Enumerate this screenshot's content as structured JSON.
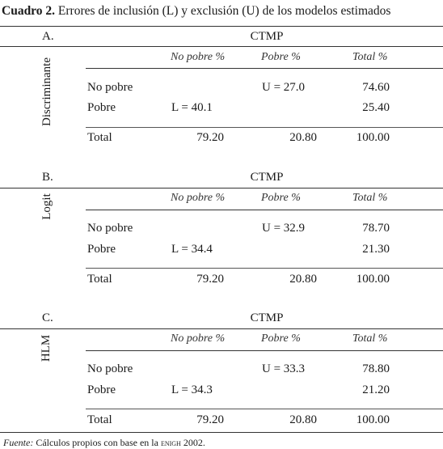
{
  "title": {
    "label": "Cuadro 2.",
    "text": "Errores de inclusión (L) y exclusión (U) de los modelos estimados"
  },
  "panels": [
    {
      "letter": "A.",
      "header": "CTMP",
      "model": "Discriminante",
      "columns": [
        "No pobre %",
        "Pobre %",
        "Total %"
      ],
      "rows": [
        {
          "label": "No pobre",
          "no_pobre": "",
          "pobre": "U = 27.0",
          "total": "74.60"
        },
        {
          "label": "Pobre",
          "no_pobre": "L = 40.1",
          "pobre": "",
          "total": "25.40"
        }
      ],
      "totals": {
        "label": "Total",
        "no_pobre": "79.20",
        "pobre": "20.80",
        "total": "100.00"
      }
    },
    {
      "letter": "B.",
      "header": "CTMP",
      "model": "Logit",
      "columns": [
        "No pobre %",
        "Pobre %",
        "Total %"
      ],
      "rows": [
        {
          "label": "No pobre",
          "no_pobre": "",
          "pobre": "U = 32.9",
          "total": "78.70"
        },
        {
          "label": "Pobre",
          "no_pobre": "L = 34.4",
          "pobre": "",
          "total": "21.30"
        }
      ],
      "totals": {
        "label": "Total",
        "no_pobre": "79.20",
        "pobre": "20.80",
        "total": "100.00"
      }
    },
    {
      "letter": "C.",
      "header": "CTMP",
      "model": "HLM",
      "columns": [
        "No pobre %",
        "Pobre %",
        "Total %"
      ],
      "rows": [
        {
          "label": "No pobre",
          "no_pobre": "",
          "pobre": "U = 33.3",
          "total": "78.80"
        },
        {
          "label": "Pobre",
          "no_pobre": "L = 34.3",
          "pobre": "",
          "total": "21.20"
        }
      ],
      "totals": {
        "label": "Total",
        "no_pobre": "79.20",
        "pobre": "20.80",
        "total": "100.00"
      }
    }
  ],
  "footnote": {
    "label": "Fuente:",
    "text_before": "Cálculos propios con base en la",
    "source": "enigh",
    "text_after": "2002."
  }
}
